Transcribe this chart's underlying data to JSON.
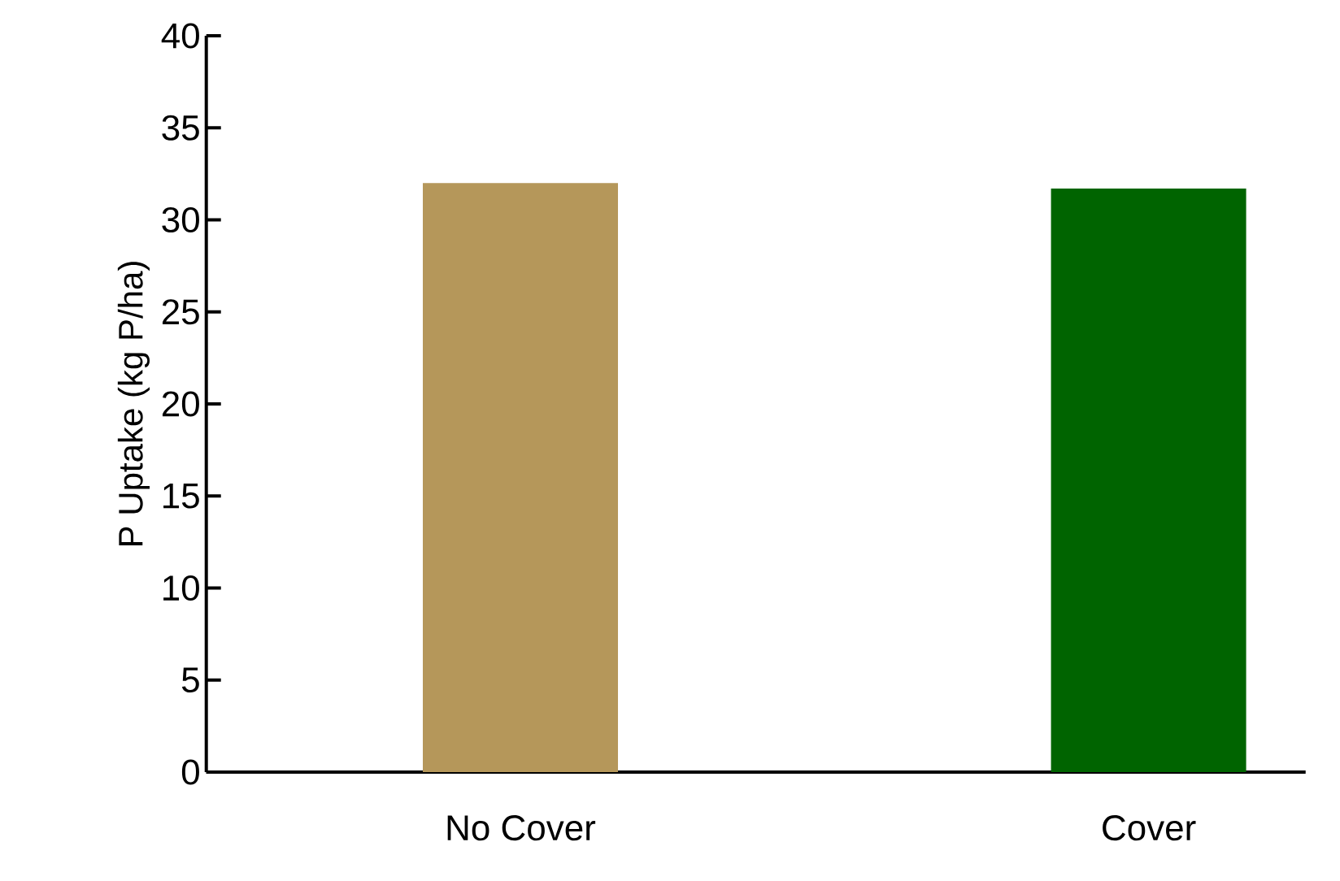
{
  "chart_data": {
    "type": "bar",
    "ylabel": "P Uptake (kg P/ha)",
    "categories": [
      "No Cover",
      "Cover"
    ],
    "values": [
      32.0,
      31.7
    ],
    "colors": [
      "#b5975a",
      "#006400"
    ],
    "ylim": [
      0,
      40
    ],
    "yticks": [
      0,
      5,
      10,
      15,
      20,
      25,
      30,
      35,
      40
    ],
    "grid": false
  }
}
